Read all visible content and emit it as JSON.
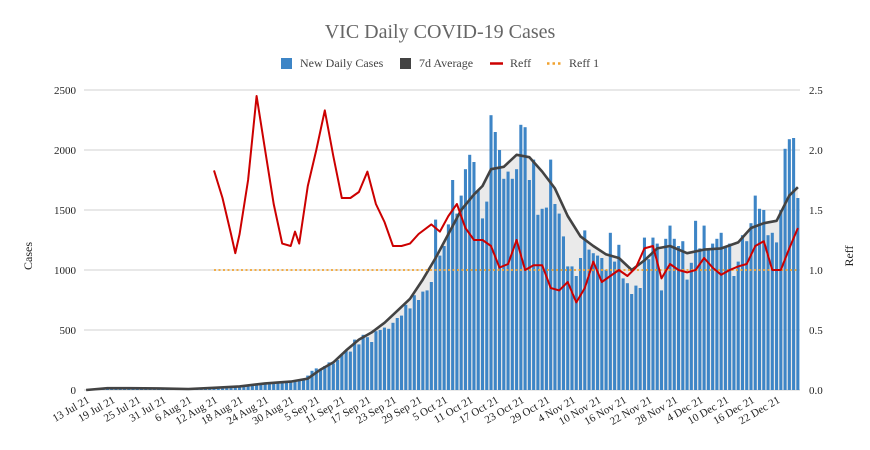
{
  "chart_data": {
    "type": "bar",
    "title": "VIC Daily COVID-19 Cases",
    "ylabel": "Cases",
    "y2label": "Reff",
    "ylim": [
      0,
      2500
    ],
    "y2lim": [
      0.0,
      2.5
    ],
    "yticks": [
      "0",
      "500",
      "1000",
      "1500",
      "2000",
      "2500"
    ],
    "y2ticks": [
      "0.0",
      "0.5",
      "1.0",
      "1.5",
      "2.0",
      "2.5"
    ],
    "grid": true,
    "legend_position": "top",
    "colors": {
      "bars": "#3d85c6",
      "avg": "#434343",
      "reff": "#cc0000",
      "reff1": "#f1a22f",
      "fill": "#d9d9d9"
    },
    "x_start": "2021-07-13",
    "x_end": "2021-12-27",
    "xtick_dates": [
      "2021-07-13",
      "2021-07-19",
      "2021-07-25",
      "2021-07-31",
      "2021-08-06",
      "2021-08-12",
      "2021-08-18",
      "2021-08-24",
      "2021-08-30",
      "2021-09-05",
      "2021-09-11",
      "2021-09-17",
      "2021-09-23",
      "2021-09-29",
      "2021-10-05",
      "2021-10-11",
      "2021-10-17",
      "2021-10-23",
      "2021-10-29",
      "2021-11-04",
      "2021-11-10",
      "2021-11-16",
      "2021-11-22",
      "2021-11-28",
      "2021-12-04",
      "2021-12-10",
      "2021-12-16",
      "2021-12-22"
    ],
    "xtick_labels": [
      "13 Jul 21",
      "19 Jul 21",
      "25 Jul 21",
      "31 Jul 21",
      "6 Aug 21",
      "12 Aug 21",
      "18 Aug 21",
      "24 Aug 21",
      "30 Aug 21",
      "5 Sep 21",
      "11 Sep 21",
      "17 Sep 21",
      "23 Sep 21",
      "29 Sep 21",
      "5 Oct 21",
      "11 Oct 21",
      "17 Oct 21",
      "23 Oct 21",
      "29 Oct 21",
      "4 Nov 21",
      "10 Nov 21",
      "16 Nov 21",
      "22 Nov 21",
      "28 Nov 21",
      "4 Dec 21",
      "10 Dec 21",
      "16 Dec 21",
      "22 Dec 21"
    ],
    "series": [
      {
        "name": "New Daily Cases",
        "type": "bar",
        "start_date": "2021-07-13",
        "values": [
          0,
          0,
          2,
          3,
          5,
          8,
          10,
          12,
          14,
          15,
          16,
          16,
          17,
          16,
          15,
          14,
          13,
          12,
          12,
          11,
          10,
          10,
          9,
          8,
          8,
          9,
          16,
          8,
          8,
          8,
          10,
          11,
          12,
          15,
          16,
          20,
          25,
          30,
          35,
          40,
          45,
          50,
          55,
          60,
          65,
          65,
          70,
          70,
          73,
          75,
          80,
          90,
          120,
          160,
          180,
          170,
          200,
          230,
          220,
          250,
          300,
          330,
          320,
          420,
          380,
          460,
          440,
          400,
          490,
          500,
          520,
          510,
          560,
          600,
          620,
          710,
          680,
          790,
          750,
          820,
          830,
          900,
          1420,
          1120,
          1200,
          1380,
          1750,
          1470,
          1620,
          1840,
          1960,
          1900,
          1660,
          1430,
          1570,
          2290,
          2150,
          2000,
          1760,
          1820,
          1760,
          1840,
          2210,
          2190,
          1750,
          1920,
          1460,
          1510,
          1520,
          1920,
          1550,
          1470,
          1280,
          1030,
          1030,
          950,
          1100,
          1330,
          1170,
          1140,
          1120,
          1100,
          1000,
          1310,
          1070,
          1210,
          930,
          890,
          800,
          870,
          850,
          1270,
          1090,
          1270,
          1220,
          830,
          1260,
          1370,
          1260,
          1200,
          1240,
          920,
          1060,
          1410,
          1180,
          1370,
          1180,
          1220,
          1260,
          1310,
          1200,
          1220,
          950,
          1070,
          1290,
          1240,
          1390,
          1620,
          1510,
          1500,
          1290,
          1310,
          1230,
          1500,
          2010,
          2090,
          2100,
          1600
        ]
      },
      {
        "name": "7d Average",
        "type": "line",
        "points": [
          [
            "2021-07-13",
            0
          ],
          [
            "2021-07-18",
            15
          ],
          [
            "2021-07-23",
            15
          ],
          [
            "2021-07-30",
            13
          ],
          [
            "2021-08-06",
            8
          ],
          [
            "2021-08-12",
            18
          ],
          [
            "2021-08-18",
            30
          ],
          [
            "2021-08-24",
            55
          ],
          [
            "2021-08-30",
            70
          ],
          [
            "2021-09-03",
            95
          ],
          [
            "2021-09-06",
            170
          ],
          [
            "2021-09-09",
            230
          ],
          [
            "2021-09-12",
            330
          ],
          [
            "2021-09-15",
            420
          ],
          [
            "2021-09-18",
            480
          ],
          [
            "2021-09-21",
            560
          ],
          [
            "2021-09-24",
            660
          ],
          [
            "2021-09-27",
            760
          ],
          [
            "2021-09-30",
            920
          ],
          [
            "2021-10-03",
            1100
          ],
          [
            "2021-10-06",
            1300
          ],
          [
            "2021-10-09",
            1500
          ],
          [
            "2021-10-12",
            1630
          ],
          [
            "2021-10-14",
            1700
          ],
          [
            "2021-10-16",
            1840
          ],
          [
            "2021-10-19",
            1860
          ],
          [
            "2021-10-22",
            1960
          ],
          [
            "2021-10-25",
            1940
          ],
          [
            "2021-10-28",
            1820
          ],
          [
            "2021-10-31",
            1680
          ],
          [
            "2021-11-03",
            1450
          ],
          [
            "2021-11-06",
            1280
          ],
          [
            "2021-11-09",
            1200
          ],
          [
            "2021-11-12",
            1130
          ],
          [
            "2021-11-15",
            1100
          ],
          [
            "2021-11-18",
            1000
          ],
          [
            "2021-11-21",
            1080
          ],
          [
            "2021-11-24",
            1180
          ],
          [
            "2021-11-27",
            1200
          ],
          [
            "2021-12-01",
            1140
          ],
          [
            "2021-12-05",
            1170
          ],
          [
            "2021-12-09",
            1180
          ],
          [
            "2021-12-13",
            1230
          ],
          [
            "2021-12-16",
            1350
          ],
          [
            "2021-12-19",
            1390
          ],
          [
            "2021-12-22",
            1410
          ],
          [
            "2021-12-25",
            1620
          ],
          [
            "2021-12-27",
            1690
          ]
        ]
      },
      {
        "name": "Reff",
        "type": "line",
        "axis": "right",
        "points": [
          [
            "2021-08-12",
            1.83
          ],
          [
            "2021-08-14",
            1.6
          ],
          [
            "2021-08-16",
            1.3
          ],
          [
            "2021-08-17",
            1.14
          ],
          [
            "2021-08-18",
            1.3
          ],
          [
            "2021-08-20",
            1.75
          ],
          [
            "2021-08-22",
            2.45
          ],
          [
            "2021-08-24",
            2.0
          ],
          [
            "2021-08-26",
            1.55
          ],
          [
            "2021-08-28",
            1.22
          ],
          [
            "2021-08-30",
            1.2
          ],
          [
            "2021-08-31",
            1.32
          ],
          [
            "2021-09-01",
            1.22
          ],
          [
            "2021-09-03",
            1.7
          ],
          [
            "2021-09-05",
            2.0
          ],
          [
            "2021-09-07",
            2.33
          ],
          [
            "2021-09-09",
            1.95
          ],
          [
            "2021-09-11",
            1.6
          ],
          [
            "2021-09-13",
            1.6
          ],
          [
            "2021-09-15",
            1.65
          ],
          [
            "2021-09-17",
            1.82
          ],
          [
            "2021-09-19",
            1.55
          ],
          [
            "2021-09-21",
            1.4
          ],
          [
            "2021-09-23",
            1.2
          ],
          [
            "2021-09-25",
            1.2
          ],
          [
            "2021-09-27",
            1.22
          ],
          [
            "2021-09-29",
            1.3
          ],
          [
            "2021-10-02",
            1.38
          ],
          [
            "2021-10-04",
            1.32
          ],
          [
            "2021-10-06",
            1.45
          ],
          [
            "2021-10-08",
            1.55
          ],
          [
            "2021-10-10",
            1.35
          ],
          [
            "2021-10-12",
            1.25
          ],
          [
            "2021-10-14",
            1.25
          ],
          [
            "2021-10-16",
            1.2
          ],
          [
            "2021-10-18",
            1.02
          ],
          [
            "2021-10-20",
            1.05
          ],
          [
            "2021-10-22",
            1.25
          ],
          [
            "2021-10-24",
            1.0
          ],
          [
            "2021-10-26",
            1.04
          ],
          [
            "2021-10-28",
            1.04
          ],
          [
            "2021-10-30",
            0.85
          ],
          [
            "2021-11-01",
            0.83
          ],
          [
            "2021-11-03",
            0.9
          ],
          [
            "2021-11-05",
            0.73
          ],
          [
            "2021-11-07",
            0.85
          ],
          [
            "2021-11-09",
            1.07
          ],
          [
            "2021-11-11",
            0.9
          ],
          [
            "2021-11-13",
            0.95
          ],
          [
            "2021-11-15",
            1.0
          ],
          [
            "2021-11-17",
            0.95
          ],
          [
            "2021-11-19",
            1.02
          ],
          [
            "2021-11-21",
            1.18
          ],
          [
            "2021-11-23",
            1.2
          ],
          [
            "2021-11-25",
            0.93
          ],
          [
            "2021-11-27",
            1.05
          ],
          [
            "2021-11-29",
            1.0
          ],
          [
            "2021-12-01",
            0.98
          ],
          [
            "2021-12-03",
            1.0
          ],
          [
            "2021-12-05",
            1.1
          ],
          [
            "2021-12-07",
            1.02
          ],
          [
            "2021-12-09",
            0.96
          ],
          [
            "2021-12-11",
            1.0
          ],
          [
            "2021-12-13",
            1.03
          ],
          [
            "2021-12-15",
            1.05
          ],
          [
            "2021-12-17",
            1.2
          ],
          [
            "2021-12-19",
            1.24
          ],
          [
            "2021-12-21",
            1.0
          ],
          [
            "2021-12-23",
            1.0
          ],
          [
            "2021-12-25",
            1.18
          ],
          [
            "2021-12-27",
            1.35
          ]
        ]
      },
      {
        "name": "Reff 1",
        "type": "line",
        "axis": "right",
        "dashed": true,
        "points": [
          [
            "2021-08-12",
            1.0
          ],
          [
            "2021-12-27",
            1.0
          ]
        ]
      }
    ]
  }
}
